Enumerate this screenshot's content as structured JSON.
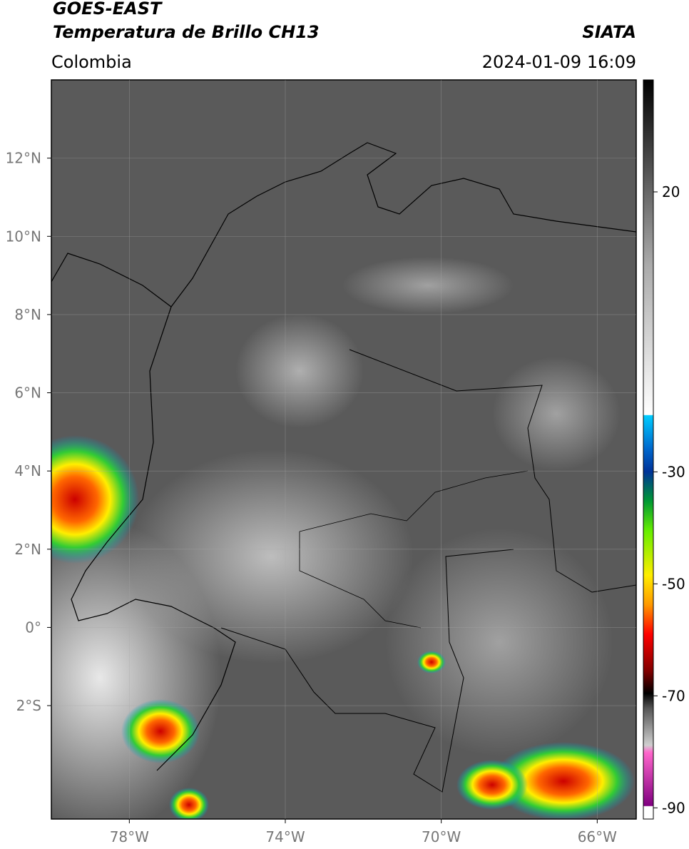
{
  "header": {
    "satellite": "GOES-EAST",
    "product": "Temperatura de Brillo CH13",
    "source": "SIATA",
    "region": "Colombia",
    "timestamp": "2024-01-09 16:09"
  },
  "map": {
    "xlim": [
      -80,
      -65
    ],
    "ylim": [
      -4.9,
      14
    ],
    "xticks": [
      {
        "value": -78,
        "label": "78°W"
      },
      {
        "value": -74,
        "label": "74°W"
      },
      {
        "value": -70,
        "label": "70°W"
      },
      {
        "value": -66,
        "label": "66°W"
      }
    ],
    "yticks": [
      {
        "value": 12,
        "label": "12°N"
      },
      {
        "value": 10,
        "label": "10°N"
      },
      {
        "value": 8,
        "label": "8°N"
      },
      {
        "value": 6,
        "label": "6°N"
      },
      {
        "value": 4,
        "label": "4°N"
      },
      {
        "value": 2,
        "label": "2°N"
      },
      {
        "value": 0,
        "label": "0°"
      },
      {
        "value": -2,
        "label": "2°S"
      }
    ]
  },
  "colorbar": {
    "lim": [
      -92,
      40
    ],
    "ticks": [
      20,
      -30,
      -50,
      -70,
      -90
    ]
  }
}
